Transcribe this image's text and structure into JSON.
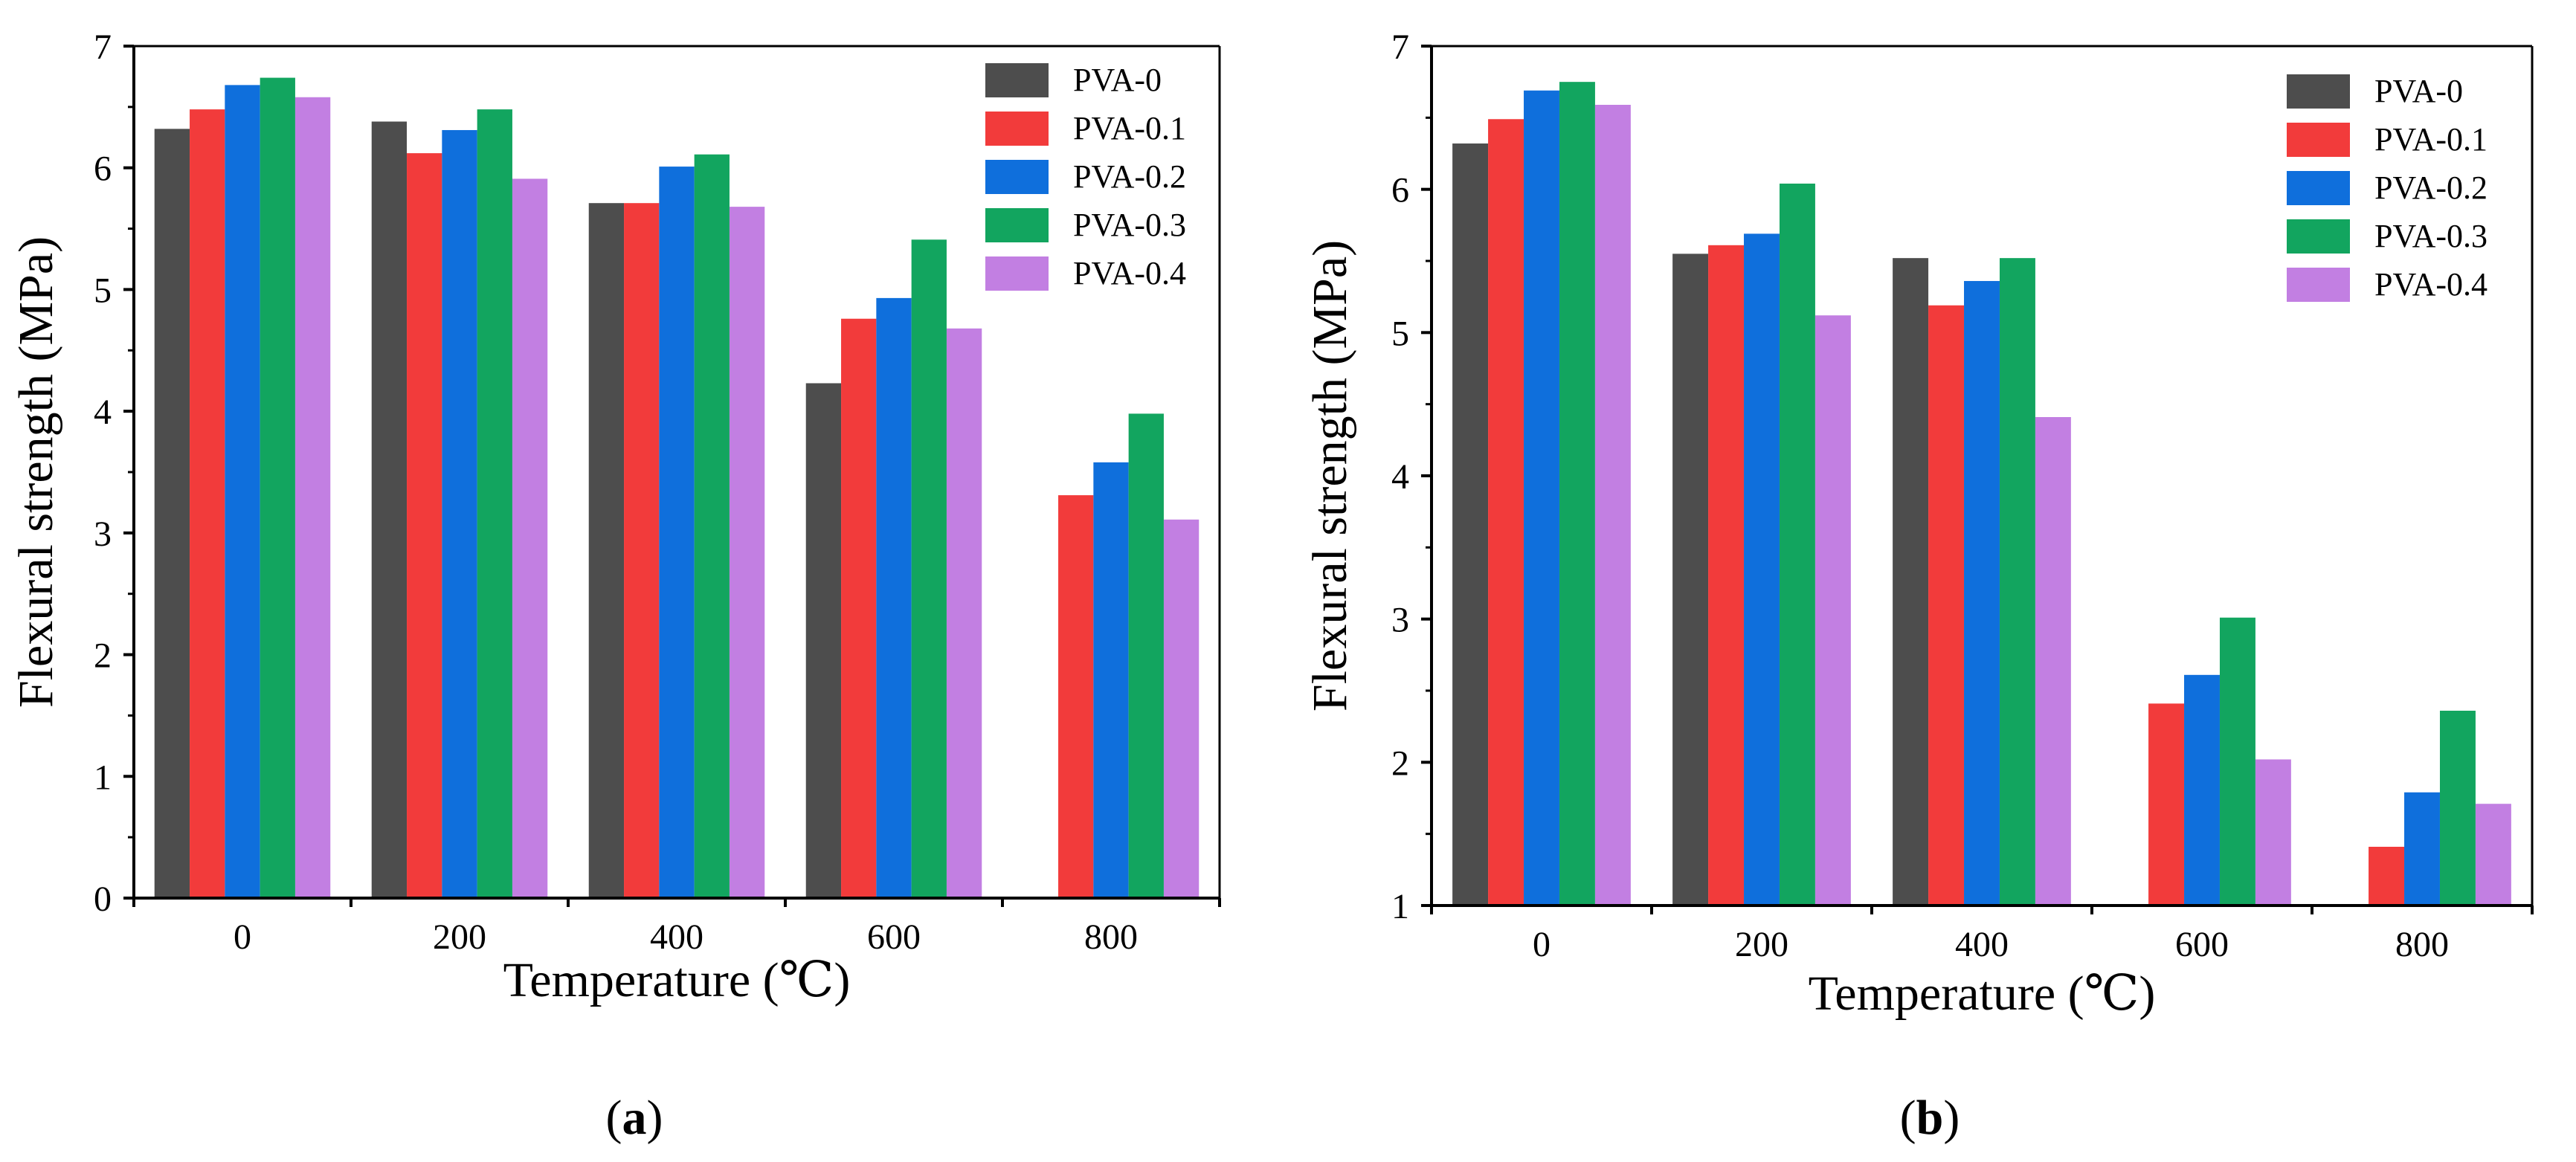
{
  "chart_data": [
    {
      "type": "bar",
      "panel_label": "a",
      "title": "",
      "xlabel": "Temperature (℃)",
      "ylabel": "Flexural strength (MPa)",
      "categories": [
        "0",
        "200",
        "400",
        "600",
        "800"
      ],
      "ylim": [
        0,
        7
      ],
      "yticks": [
        "0",
        "1",
        "2",
        "3",
        "4",
        "5",
        "6",
        "7"
      ],
      "legend_position": "top-right",
      "series": [
        {
          "name": "PVA-0",
          "color": "#4d4d4d",
          "values": [
            6.32,
            6.38,
            5.71,
            4.23,
            null
          ]
        },
        {
          "name": "PVA-0.1",
          "color": "#f23b3b",
          "values": [
            6.48,
            6.12,
            5.71,
            4.76,
            3.31
          ]
        },
        {
          "name": "PVA-0.2",
          "color": "#0f6fdc",
          "values": [
            6.68,
            6.31,
            6.01,
            4.93,
            3.58
          ]
        },
        {
          "name": "PVA-0.3",
          "color": "#12a55f",
          "values": [
            6.74,
            6.48,
            6.11,
            5.41,
            3.98
          ]
        },
        {
          "name": "PVA-0.4",
          "color": "#c27fe2",
          "values": [
            6.58,
            5.91,
            5.68,
            4.68,
            3.11
          ]
        }
      ]
    },
    {
      "type": "bar",
      "panel_label": "b",
      "title": "",
      "xlabel": "Temperature (℃)",
      "ylabel": "Flexural strength (MPa)",
      "categories": [
        "0",
        "200",
        "400",
        "600",
        "800"
      ],
      "ylim": [
        1,
        7
      ],
      "yticks": [
        "1",
        "2",
        "3",
        "4",
        "5",
        "6",
        "7"
      ],
      "legend_position": "top-right",
      "series": [
        {
          "name": "PVA-0",
          "color": "#4d4d4d",
          "values": [
            6.32,
            5.55,
            5.52,
            null,
            null
          ]
        },
        {
          "name": "PVA-0.1",
          "color": "#f23b3b",
          "values": [
            6.49,
            5.61,
            5.19,
            2.41,
            1.41
          ]
        },
        {
          "name": "PVA-0.2",
          "color": "#0f6fdc",
          "values": [
            6.69,
            5.69,
            5.36,
            2.61,
            1.79
          ]
        },
        {
          "name": "PVA-0.3",
          "color": "#12a55f",
          "values": [
            6.75,
            6.04,
            5.52,
            3.01,
            2.36
          ]
        },
        {
          "name": "PVA-0.4",
          "color": "#c27fe2",
          "values": [
            6.59,
            5.12,
            4.41,
            2.02,
            1.71
          ]
        }
      ]
    }
  ]
}
